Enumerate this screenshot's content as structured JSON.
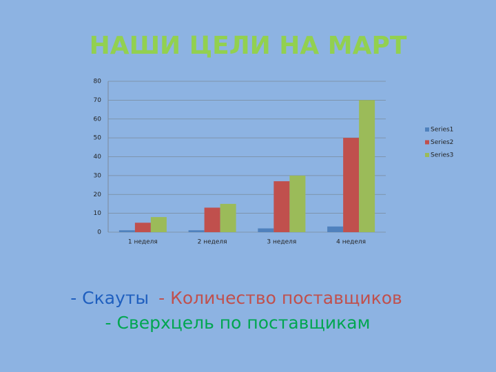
{
  "chart_data": {
    "type": "bar",
    "title": "НАШИ ЦЕЛИ НА МАРТ",
    "title_color": "#92d050",
    "categories": [
      "1 неделя",
      "2 неделя",
      "3 неделя",
      "4 неделя"
    ],
    "series": [
      {
        "name": "Series1",
        "color": "#4f81bd",
        "values": [
          1,
          1,
          2,
          3
        ]
      },
      {
        "name": "Series2",
        "color": "#c0504d",
        "values": [
          5,
          13,
          27,
          50
        ]
      },
      {
        "name": "Series3",
        "color": "#9bbb59",
        "values": [
          8,
          15,
          30,
          70
        ]
      }
    ],
    "ylim": [
      0,
      80
    ],
    "yticks": [
      0,
      10,
      20,
      30,
      40,
      50,
      60,
      70,
      80
    ],
    "grid": true,
    "legend": "right"
  },
  "captions": [
    {
      "text": "- Скауты",
      "color": "#1f5fbf"
    },
    {
      "text": "- Количество поставщиков",
      "color": "#c0504d"
    },
    {
      "text": "- Сверхцель по поставщикам",
      "color": "#00a650"
    }
  ]
}
